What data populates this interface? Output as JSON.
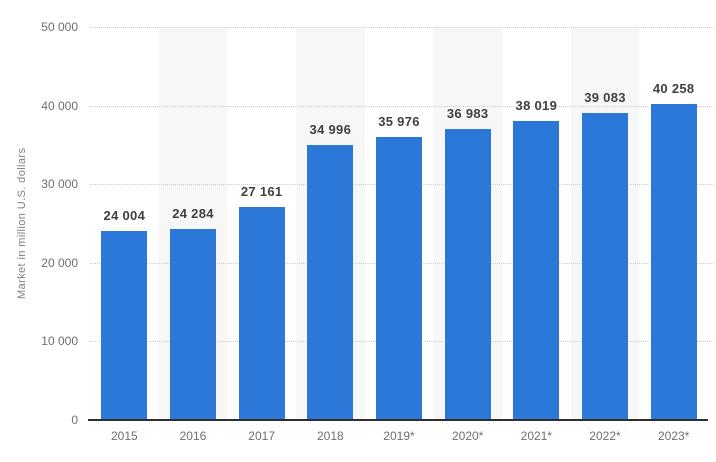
{
  "chart_data": {
    "type": "bar",
    "title": "",
    "xlabel": "",
    "ylabel": "Market in million U.S. dollars",
    "categories": [
      "2015",
      "2016",
      "2017",
      "2018",
      "2019*",
      "2020*",
      "2021*",
      "2022*",
      "2023*"
    ],
    "values": [
      24004,
      24284,
      27161,
      34996,
      35976,
      36983,
      38019,
      39083,
      40258
    ],
    "value_labels": [
      "24 004",
      "24 284",
      "27 161",
      "34 996",
      "35 976",
      "36 983",
      "38 019",
      "39 083",
      "40 258"
    ],
    "ylim": [
      0,
      50000
    ],
    "yticks": [
      {
        "value": 0,
        "label": "0"
      },
      {
        "value": 10000,
        "label": "10 000"
      },
      {
        "value": 20000,
        "label": "20 000"
      },
      {
        "value": 30000,
        "label": "30 000"
      },
      {
        "value": 40000,
        "label": "40 000"
      },
      {
        "value": 50000,
        "label": "50 000"
      }
    ],
    "grid": "horizontal-dotted",
    "legend": "none",
    "colors": {
      "bar": "#2b78d8",
      "plot_band": "#f7f7f7",
      "gridline": "#cfcfcf",
      "axis_line": "#2f2f2f",
      "value_label": "#404040",
      "tick_label": "#6b6f73"
    },
    "banded_column_indexes": [
      1,
      3,
      5,
      7
    ]
  }
}
